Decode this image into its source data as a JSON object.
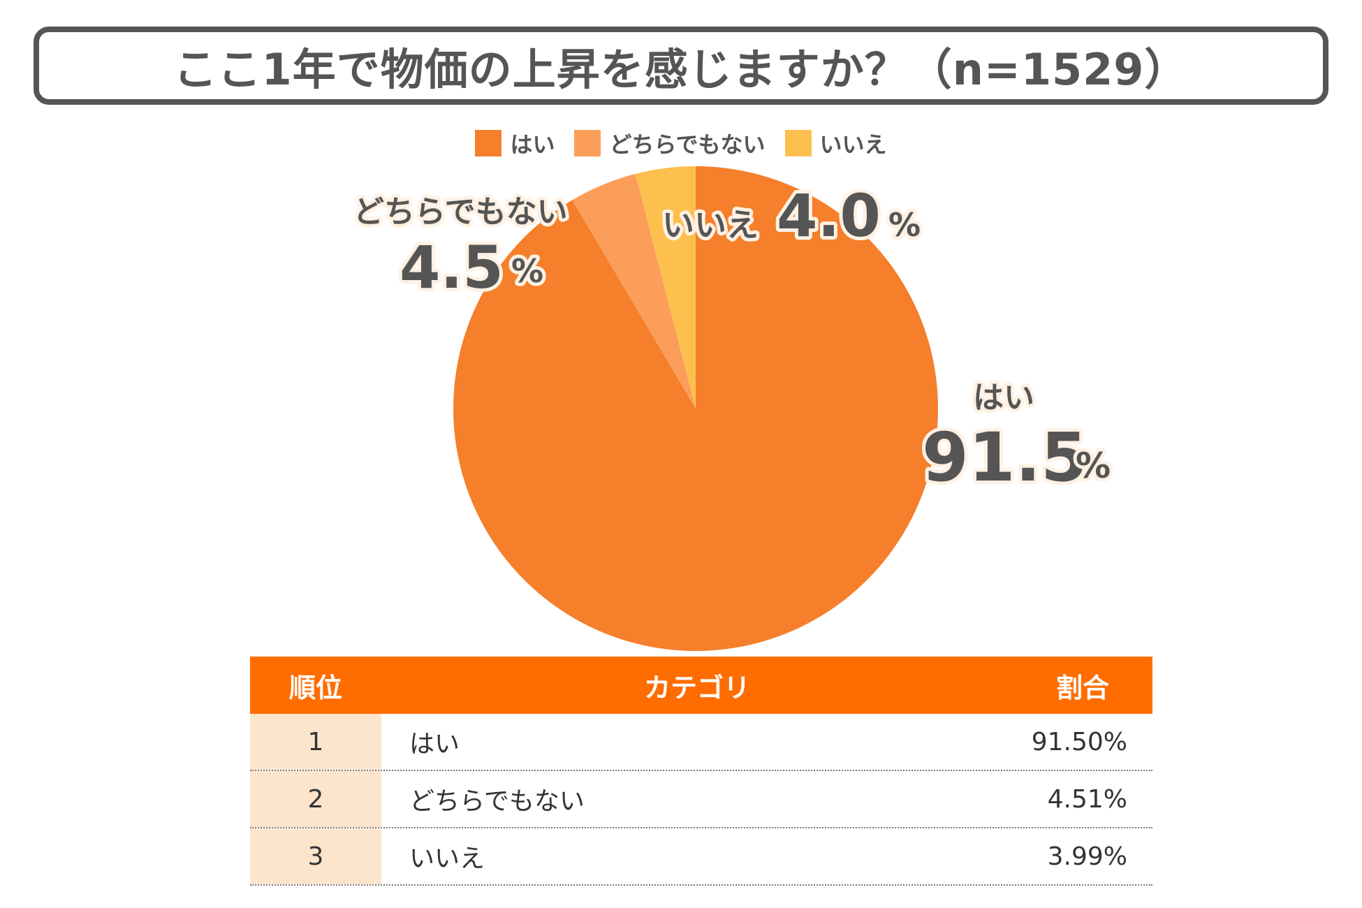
{
  "title": "ここ1年で物価の上昇を感じますか？（n=1529）",
  "legend": [
    {
      "label": "はい",
      "color": "#f57f2a"
    },
    {
      "label": "どちらでもない",
      "color": "#fb9e5a"
    },
    {
      "label": "いいえ",
      "color": "#fdc04e"
    }
  ],
  "chart_data": {
    "type": "pie",
    "title": "ここ1年で物価の上昇を感じますか？（n=1529）",
    "slices": [
      {
        "label": "はい",
        "value": 91.5,
        "display": "91.5",
        "color": "#f57f2a"
      },
      {
        "label": "どちらでもない",
        "value": 4.5,
        "display": "4.5",
        "color": "#fb9e5a"
      },
      {
        "label": "いいえ",
        "value": 4.0,
        "display": "4.0",
        "color": "#fdc04e"
      }
    ],
    "percent_sign": "%",
    "legend_position": "top"
  },
  "table": {
    "headers": {
      "rank": "順位",
      "category": "カテゴリ",
      "ratio": "割合"
    },
    "rows": [
      {
        "rank": "1",
        "category": "はい",
        "ratio": "91.50%"
      },
      {
        "rank": "2",
        "category": "どちらでもない",
        "ratio": "4.51%"
      },
      {
        "rank": "3",
        "category": "いいえ",
        "ratio": "3.99%"
      }
    ]
  }
}
